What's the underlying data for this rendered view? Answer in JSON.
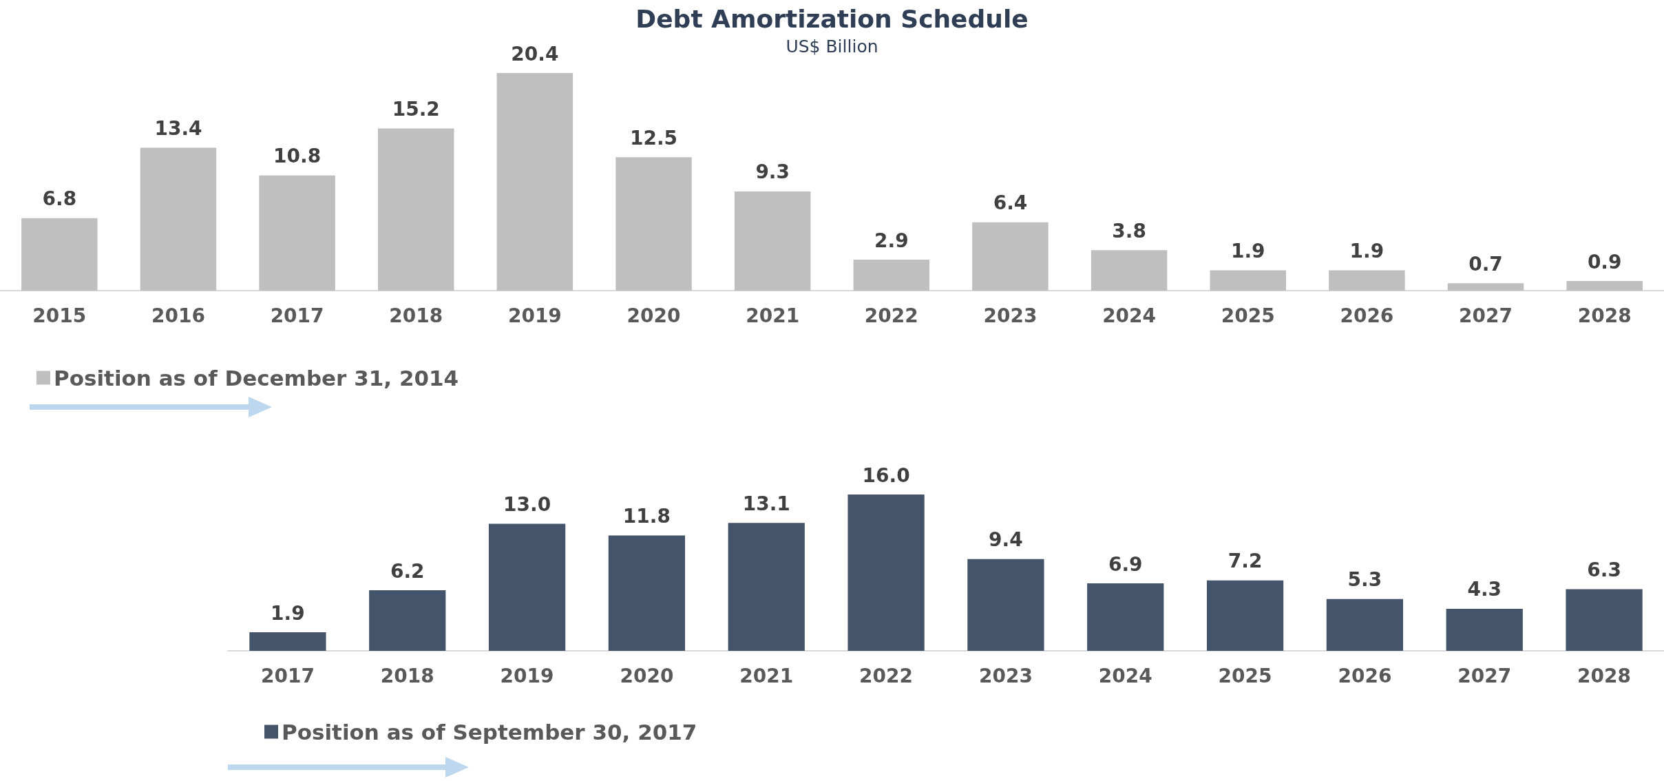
{
  "chart_data": [
    {
      "type": "bar",
      "title": "Debt Amortization Schedule",
      "subtitle": "US$ Billion",
      "categories": [
        "2015",
        "2016",
        "2017",
        "2018",
        "2019",
        "2020",
        "2021",
        "2022",
        "2023",
        "2024",
        "2025",
        "2026",
        "2027",
        "2028"
      ],
      "series": [
        {
          "name": "Position as of December 31, 2014",
          "color": "#bfbfbf",
          "values": [
            6.8,
            13.4,
            10.8,
            15.2,
            20.4,
            12.5,
            9.3,
            2.9,
            6.4,
            3.8,
            1.9,
            1.9,
            0.7,
            0.9
          ]
        }
      ],
      "data_labels": true,
      "legend": "bottom left",
      "tick_labels": "x"
    },
    {
      "type": "bar",
      "categories": [
        "2017",
        "2018",
        "2019",
        "2020",
        "2021",
        "2022",
        "2023",
        "2024",
        "2025",
        "2026",
        "2027",
        "2028"
      ],
      "series": [
        {
          "name": "Position as of September 30, 2017",
          "color": "#44546a",
          "values": [
            1.9,
            6.2,
            13.0,
            11.8,
            13.1,
            16.0,
            9.4,
            6.9,
            7.2,
            5.3,
            4.3,
            6.3
          ],
          "value_labels": [
            "1.9",
            "6.2",
            "13.0",
            "11.8",
            "13.1",
            "16.0",
            "9.4",
            "6.9",
            "7.2",
            "5.3",
            "4.3",
            "6.3"
          ]
        }
      ],
      "legend": "bottom left",
      "tick_labels": "x"
    }
  ]
}
